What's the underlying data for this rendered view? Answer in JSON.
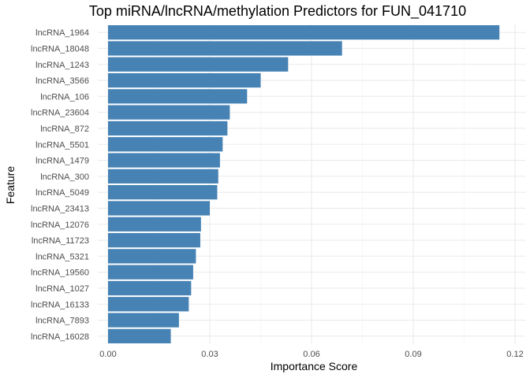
{
  "chart_data": {
    "type": "bar",
    "orientation": "horizontal",
    "title": "Top miRNA/lncRNA/methylation Predictors for FUN_041710",
    "xlabel": "Importance Score",
    "ylabel": "Feature",
    "xlim": [
      0,
      0.12
    ],
    "x_ticks": [
      0.0,
      0.03,
      0.06,
      0.09,
      0.12
    ],
    "x_tick_labels": [
      "0.00",
      "0.03",
      "0.06",
      "0.09",
      "0.12"
    ],
    "grid": true,
    "legend": "none",
    "bar_color": "#4682B4",
    "categories": [
      "lncRNA_1964",
      "lncRNA_18048",
      "lncRNA_1243",
      "lncRNA_3566",
      "lncRNA_106",
      "lncRNA_23604",
      "lncRNA_872",
      "lncRNA_5501",
      "lncRNA_1479",
      "lncRNA_300",
      "lncRNA_5049",
      "lncRNA_23413",
      "lncRNA_12076",
      "lncRNA_11723",
      "lncRNA_5321",
      "lncRNA_19560",
      "lncRNA_1027",
      "lncRNA_16133",
      "lncRNA_7893",
      "lncRNA_16028"
    ],
    "values": [
      0.1154,
      0.069,
      0.0531,
      0.045,
      0.041,
      0.0359,
      0.0352,
      0.0338,
      0.033,
      0.0325,
      0.0322,
      0.03,
      0.0274,
      0.0272,
      0.0259,
      0.0251,
      0.0245,
      0.0238,
      0.0209,
      0.0185
    ]
  }
}
